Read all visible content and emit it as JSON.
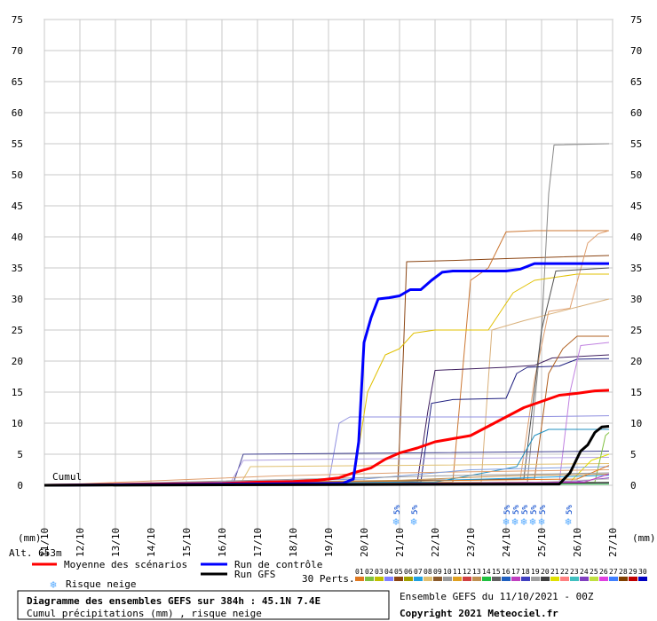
{
  "chart_data": {
    "type": "line",
    "title": "Diagramme des ensembles GEFS sur 384h : 45.1N 7.4E",
    "subtitle": "Cumul précipitations (mm) , risque neige",
    "ylabel_left": "(mm)",
    "ylabel_right": "(mm)",
    "cumul_label": "Cumul",
    "altitude": "Alt. 653m",
    "ylim": [
      0,
      75
    ],
    "yticks": [
      0,
      5,
      10,
      15,
      20,
      25,
      30,
      35,
      40,
      45,
      50,
      55,
      60,
      65,
      70,
      75
    ],
    "xlim": [
      0,
      16
    ],
    "x_labels": [
      "11/10",
      "12/10",
      "13/10",
      "14/10",
      "15/10",
      "16/10",
      "17/10",
      "18/10",
      "19/10",
      "20/10",
      "21/10",
      "22/10",
      "23/10",
      "24/10",
      "25/10",
      "26/10",
      "27/10"
    ],
    "grid": true,
    "legend": {
      "mean": "Moyenne des scénarios",
      "control": "Run de contrôle",
      "gfs": "Run GFS",
      "snow": "Risque neige",
      "perts": "30 Perts."
    },
    "pert_numbers": [
      "01",
      "02",
      "03",
      "04",
      "05",
      "06",
      "07",
      "08",
      "09",
      "10",
      "11",
      "12",
      "13",
      "14",
      "15",
      "16",
      "17",
      "18",
      "19",
      "20",
      "21",
      "22",
      "23",
      "24",
      "25",
      "26",
      "27",
      "28",
      "29",
      "30"
    ],
    "pert_colors": [
      "#e07820",
      "#80c040",
      "#c0c000",
      "#8080ff",
      "#8b4513",
      "#a0a000",
      "#20a0e0",
      "#e0c070",
      "#8b5a2b",
      "#9a9a9a",
      "#e0a020",
      "#d04040",
      "#c09050",
      "#20c040",
      "#606060",
      "#2060c0",
      "#c040c0",
      "#4040c0",
      "#a0a0a0",
      "#404040",
      "#e0e000",
      "#ff8080",
      "#40c0c0",
      "#8040c0",
      "#c0e040",
      "#e040e0",
      "#4080ff",
      "#804000",
      "#c00000",
      "#0000c0"
    ],
    "snow_markers": [
      {
        "x": 9.9,
        "label": "5%"
      },
      {
        "x": 10.4,
        "label": "5%"
      },
      {
        "x": 13.0,
        "label": "5%"
      },
      {
        "x": 13.25,
        "label": "5%"
      },
      {
        "x": 13.5,
        "label": "5%"
      },
      {
        "x": 13.75,
        "label": "5%"
      },
      {
        "x": 14.0,
        "label": "5%"
      },
      {
        "x": 14.75,
        "label": "5%"
      }
    ],
    "series": [
      {
        "name": "Moyenne des scénarios",
        "color": "#ff0000",
        "width": 3,
        "points": [
          [
            0,
            0
          ],
          [
            3,
            0.2
          ],
          [
            5,
            0.3
          ],
          [
            6,
            0.5
          ],
          [
            7,
            0.6
          ],
          [
            7.7,
            0.8
          ],
          [
            8.3,
            1.2
          ],
          [
            8.7,
            2
          ],
          [
            9.2,
            2.8
          ],
          [
            9.6,
            4.2
          ],
          [
            10,
            5.2
          ],
          [
            10.5,
            6
          ],
          [
            11,
            7
          ],
          [
            11.5,
            7.5
          ],
          [
            12,
            8
          ],
          [
            12.5,
            9.5
          ],
          [
            13,
            11
          ],
          [
            13.5,
            12.5
          ],
          [
            14,
            13.5
          ],
          [
            14.5,
            14.5
          ],
          [
            15,
            14.8
          ],
          [
            15.5,
            15.2
          ],
          [
            15.9,
            15.3
          ]
        ]
      },
      {
        "name": "Run de contrôle",
        "color": "#0000ff",
        "width": 3,
        "points": [
          [
            0,
            0
          ],
          [
            8.4,
            0.3
          ],
          [
            8.7,
            1
          ],
          [
            8.85,
            7
          ],
          [
            9,
            23
          ],
          [
            9.2,
            27
          ],
          [
            9.4,
            30
          ],
          [
            9.7,
            30.2
          ],
          [
            10,
            30.5
          ],
          [
            10.3,
            31.5
          ],
          [
            10.6,
            31.5
          ],
          [
            10.9,
            33
          ],
          [
            11.2,
            34.3
          ],
          [
            11.5,
            34.5
          ],
          [
            13,
            34.5
          ],
          [
            13.4,
            34.8
          ],
          [
            13.8,
            35.7
          ],
          [
            15.9,
            35.7
          ]
        ]
      },
      {
        "name": "Run GFS",
        "color": "#000000",
        "width": 3,
        "points": [
          [
            0,
            0
          ],
          [
            14.5,
            0.2
          ],
          [
            14.8,
            2
          ],
          [
            15.1,
            5.5
          ],
          [
            15.3,
            6.5
          ],
          [
            15.5,
            8.5
          ],
          [
            15.7,
            9.4
          ],
          [
            15.9,
            9.5
          ]
        ]
      },
      {
        "name": "01",
        "color": "#8b4513",
        "width": 1,
        "points": [
          [
            0,
            0
          ],
          [
            9.95,
            0.5
          ],
          [
            10.1,
            20
          ],
          [
            10.2,
            36
          ],
          [
            11.5,
            36.2
          ],
          [
            13,
            36.5
          ],
          [
            15.9,
            37
          ]
        ]
      },
      {
        "name": "02",
        "color": "#cc7733",
        "width": 1,
        "points": [
          [
            0,
            0
          ],
          [
            11.5,
            0.5
          ],
          [
            11.8,
            20
          ],
          [
            12,
            33
          ],
          [
            12.5,
            35
          ],
          [
            13,
            40.8
          ],
          [
            13.8,
            41
          ],
          [
            15.9,
            41
          ]
        ]
      },
      {
        "name": "03",
        "color": "#888888",
        "width": 1,
        "points": [
          [
            0,
            0
          ],
          [
            13.6,
            0.5
          ],
          [
            14,
            25
          ],
          [
            14.2,
            47
          ],
          [
            14.35,
            54.8
          ],
          [
            15.9,
            55
          ]
        ]
      },
      {
        "name": "04",
        "color": "#e0c000",
        "width": 1,
        "points": [
          [
            0,
            0
          ],
          [
            8.7,
            0.5
          ],
          [
            9.1,
            15
          ],
          [
            9.6,
            21
          ],
          [
            10,
            22
          ],
          [
            10.4,
            24.5
          ],
          [
            11,
            25
          ],
          [
            12.5,
            25
          ],
          [
            13.2,
            31
          ],
          [
            13.8,
            33
          ],
          [
            15,
            34
          ],
          [
            15.9,
            34
          ]
        ]
      },
      {
        "name": "05",
        "color": "#e0a070",
        "width": 1,
        "points": [
          [
            0,
            0
          ],
          [
            13.4,
            1
          ],
          [
            13.8,
            17
          ],
          [
            14.2,
            28
          ],
          [
            14.8,
            28.5
          ],
          [
            15.3,
            39
          ],
          [
            15.6,
            40.5
          ],
          [
            15.9,
            41
          ]
        ]
      },
      {
        "name": "06",
        "color": "#d9b07a",
        "width": 1,
        "points": [
          [
            0,
            0
          ],
          [
            12.3,
            0.5
          ],
          [
            12.6,
            25
          ],
          [
            13.5,
            26.5
          ],
          [
            15.9,
            30
          ]
        ]
      },
      {
        "name": "07",
        "color": "#402060",
        "width": 1,
        "points": [
          [
            0,
            0
          ],
          [
            10.5,
            0.5
          ],
          [
            10.8,
            12
          ],
          [
            11,
            18.5
          ],
          [
            13,
            19
          ],
          [
            13.8,
            19.3
          ],
          [
            14.3,
            20.5
          ],
          [
            15.9,
            21
          ]
        ]
      },
      {
        "name": "08",
        "color": "#202080",
        "width": 1,
        "points": [
          [
            0,
            0
          ],
          [
            10.6,
            0.5
          ],
          [
            10.9,
            13.2
          ],
          [
            11.5,
            13.8
          ],
          [
            13,
            14
          ],
          [
            13.3,
            18
          ],
          [
            13.6,
            19
          ],
          [
            14.5,
            19.2
          ],
          [
            15,
            20.3
          ],
          [
            15.9,
            20.4
          ]
        ]
      },
      {
        "name": "09",
        "color": "#9090e0",
        "width": 1,
        "points": [
          [
            0,
            0
          ],
          [
            8,
            0.3
          ],
          [
            8.3,
            10
          ],
          [
            8.6,
            11
          ],
          [
            13,
            11
          ],
          [
            15.9,
            11.2
          ]
        ]
      },
      {
        "name": "10",
        "color": "#b06020",
        "width": 1,
        "points": [
          [
            0,
            0
          ],
          [
            13.8,
            1
          ],
          [
            14.2,
            18
          ],
          [
            14.6,
            22
          ],
          [
            15,
            24
          ],
          [
            15.9,
            24
          ]
        ]
      },
      {
        "name": "11",
        "color": "#c080e0",
        "width": 1,
        "points": [
          [
            0,
            0
          ],
          [
            14.5,
            0.5
          ],
          [
            14.8,
            15
          ],
          [
            15.1,
            22.5
          ],
          [
            15.9,
            23
          ]
        ]
      },
      {
        "name": "12",
        "color": "#505050",
        "width": 1,
        "points": [
          [
            0,
            0
          ],
          [
            13.5,
            1
          ],
          [
            14.0,
            25
          ],
          [
            14.4,
            34.5
          ],
          [
            15.9,
            35
          ]
        ]
      },
      {
        "name": "13",
        "color": "#404090",
        "width": 1,
        "points": [
          [
            0,
            0
          ],
          [
            5.3,
            0
          ],
          [
            5.6,
            5
          ],
          [
            10,
            5.2
          ],
          [
            15.9,
            5.5
          ]
        ]
      },
      {
        "name": "14",
        "color": "#e0c070",
        "width": 1,
        "points": [
          [
            0,
            0
          ],
          [
            5.5,
            0
          ],
          [
            5.8,
            3
          ],
          [
            10,
            3.2
          ],
          [
            15.9,
            3.5
          ]
        ]
      },
      {
        "name": "15",
        "color": "#b0a0e0",
        "width": 1,
        "points": [
          [
            0,
            0
          ],
          [
            5.2,
            0
          ],
          [
            5.6,
            4
          ],
          [
            8,
            4.2
          ],
          [
            15.9,
            4.5
          ]
        ]
      },
      {
        "name": "16",
        "color": "#2090c0",
        "width": 1,
        "points": [
          [
            0,
            0
          ],
          [
            11,
            0.5
          ],
          [
            13.3,
            3
          ],
          [
            13.8,
            8
          ],
          [
            14.2,
            9
          ],
          [
            15.9,
            9
          ]
        ]
      },
      {
        "name": "17",
        "color": "#e0e000",
        "width": 1,
        "points": [
          [
            0,
            0
          ],
          [
            14.8,
            0.5
          ],
          [
            15.4,
            4
          ],
          [
            15.9,
            5
          ]
        ]
      },
      {
        "name": "18",
        "color": "#80c040",
        "width": 1,
        "points": [
          [
            0,
            0
          ],
          [
            15.5,
            0.5
          ],
          [
            15.8,
            8
          ],
          [
            15.9,
            8.5
          ]
        ]
      },
      {
        "name": "19",
        "color": "#e0a070",
        "width": 1,
        "points": [
          [
            0,
            0
          ],
          [
            6.5,
            1.5
          ],
          [
            10,
            2
          ],
          [
            15.9,
            2.5
          ]
        ]
      },
      {
        "name": "20",
        "color": "#80a0e0",
        "width": 1,
        "points": [
          [
            0,
            0
          ],
          [
            9,
            1
          ],
          [
            12,
            2.5
          ],
          [
            15.9,
            3
          ]
        ]
      },
      {
        "name": "21",
        "color": "#c09050",
        "width": 1,
        "points": [
          [
            0,
            0
          ],
          [
            10,
            0.8
          ],
          [
            13,
            1.5
          ],
          [
            15.9,
            1.8
          ]
        ]
      },
      {
        "name": "22",
        "color": "#8040c0",
        "width": 1,
        "points": [
          [
            0,
            0
          ],
          [
            12,
            0.3
          ],
          [
            15,
            0.6
          ],
          [
            15.9,
            1.2
          ]
        ]
      },
      {
        "name": "23",
        "color": "#408040",
        "width": 1,
        "points": [
          [
            0,
            0
          ],
          [
            11,
            0.2
          ],
          [
            15.9,
            0.5
          ]
        ]
      },
      {
        "name": "24",
        "color": "#c0c0c0",
        "width": 1,
        "points": [
          [
            0,
            0
          ],
          [
            13,
            0.3
          ],
          [
            15.9,
            1
          ]
        ]
      },
      {
        "name": "25",
        "color": "#20a0e0",
        "width": 1,
        "points": [
          [
            0,
            0
          ],
          [
            9.5,
            0.5
          ],
          [
            15.9,
            1.6
          ]
        ]
      },
      {
        "name": "26",
        "color": "#e07820",
        "width": 1,
        "points": [
          [
            0,
            0
          ],
          [
            15,
            1
          ],
          [
            15.9,
            3.2
          ]
        ]
      },
      {
        "name": "27",
        "color": "#9a9a9a",
        "width": 1,
        "points": [
          [
            0,
            0
          ],
          [
            11,
            1.5
          ],
          [
            15.9,
            2
          ]
        ]
      },
      {
        "name": "28",
        "color": "#c040c0",
        "width": 1,
        "points": [
          [
            0,
            0
          ],
          [
            15.2,
            0.5
          ],
          [
            15.9,
            1.8
          ]
        ]
      },
      {
        "name": "29",
        "color": "#602060",
        "width": 1,
        "points": [
          [
            0,
            0
          ],
          [
            12,
            0.2
          ],
          [
            15.9,
            0.4
          ]
        ]
      },
      {
        "name": "30",
        "color": "#20c040",
        "width": 1,
        "points": [
          [
            0,
            0
          ],
          [
            15.9,
            0.2
          ]
        ]
      }
    ],
    "footer": {
      "ensemble": "Ensemble GEFS du 11/10/2021 - 00Z",
      "copyright": "Copyright 2021 Meteociel.fr"
    }
  }
}
